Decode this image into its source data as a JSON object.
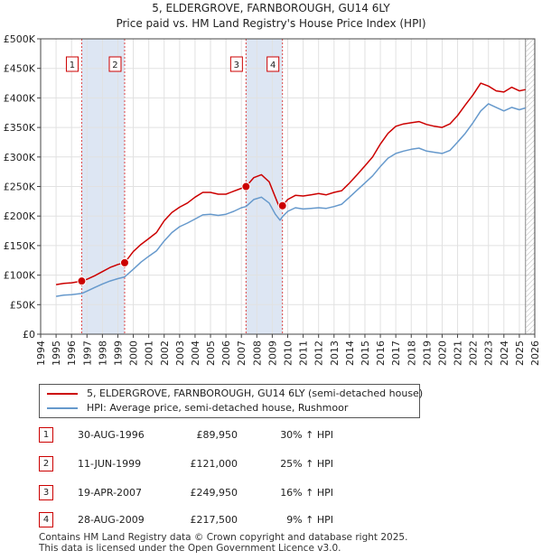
{
  "chart_data": {
    "type": "line",
    "title": "5, ELDERGROVE, FARNBOROUGH, GU14 6LY",
    "subtitle": "Price paid vs. HM Land Registry's House Price Index (HPI)",
    "xlim": [
      1994,
      2026
    ],
    "ylim": [
      0,
      500000
    ],
    "x_ticks": [
      1994,
      1995,
      1996,
      1997,
      1998,
      1999,
      2000,
      2001,
      2002,
      2003,
      2004,
      2005,
      2006,
      2007,
      2008,
      2009,
      2010,
      2011,
      2012,
      2013,
      2014,
      2015,
      2016,
      2017,
      2018,
      2019,
      2020,
      2021,
      2022,
      2023,
      2024,
      2025,
      2026
    ],
    "y_ticks": [
      0,
      50000,
      100000,
      150000,
      200000,
      250000,
      300000,
      350000,
      400000,
      450000,
      500000
    ],
    "y_tick_labels": [
      "£0",
      "£50K",
      "£100K",
      "£150K",
      "£200K",
      "£250K",
      "£300K",
      "£350K",
      "£400K",
      "£450K",
      "£500K"
    ],
    "grid": true,
    "data_end_year": 2025.4,
    "shaded_periods": [
      [
        1996.66,
        1999.44
      ],
      [
        2007.3,
        2009.66
      ]
    ],
    "series": [
      {
        "name": "5, ELDERGROVE, FARNBOROUGH, GU14 6LY (semi-detached house)",
        "color": "#cc0000",
        "points": [
          [
            1995.0,
            84000
          ],
          [
            1995.5,
            86000
          ],
          [
            1996.0,
            87000
          ],
          [
            1996.66,
            89950
          ],
          [
            1997.0,
            93000
          ],
          [
            1997.5,
            99000
          ],
          [
            1998.0,
            106000
          ],
          [
            1998.5,
            113000
          ],
          [
            1999.0,
            118000
          ],
          [
            1999.44,
            121000
          ],
          [
            2000.0,
            140000
          ],
          [
            2000.5,
            152000
          ],
          [
            2001.0,
            162000
          ],
          [
            2001.5,
            172000
          ],
          [
            2002.0,
            192000
          ],
          [
            2002.5,
            206000
          ],
          [
            2003.0,
            215000
          ],
          [
            2003.5,
            222000
          ],
          [
            2004.0,
            232000
          ],
          [
            2004.5,
            240000
          ],
          [
            2005.0,
            240000
          ],
          [
            2005.5,
            237000
          ],
          [
            2006.0,
            237000
          ],
          [
            2006.5,
            242000
          ],
          [
            2007.0,
            247000
          ],
          [
            2007.3,
            249950
          ],
          [
            2007.8,
            265000
          ],
          [
            2008.3,
            270000
          ],
          [
            2008.8,
            258000
          ],
          [
            2009.2,
            232000
          ],
          [
            2009.5,
            212000
          ],
          [
            2009.66,
            217500
          ],
          [
            2010.0,
            228000
          ],
          [
            2010.5,
            235000
          ],
          [
            2011.0,
            234000
          ],
          [
            2011.5,
            236000
          ],
          [
            2012.0,
            238000
          ],
          [
            2012.5,
            236000
          ],
          [
            2013.0,
            240000
          ],
          [
            2013.5,
            243000
          ],
          [
            2014.0,
            256000
          ],
          [
            2014.5,
            270000
          ],
          [
            2015.0,
            285000
          ],
          [
            2015.5,
            300000
          ],
          [
            2016.0,
            322000
          ],
          [
            2016.5,
            340000
          ],
          [
            2017.0,
            352000
          ],
          [
            2017.5,
            356000
          ],
          [
            2018.0,
            358000
          ],
          [
            2018.5,
            360000
          ],
          [
            2019.0,
            355000
          ],
          [
            2019.5,
            352000
          ],
          [
            2020.0,
            350000
          ],
          [
            2020.5,
            356000
          ],
          [
            2021.0,
            370000
          ],
          [
            2021.5,
            388000
          ],
          [
            2022.0,
            405000
          ],
          [
            2022.5,
            425000
          ],
          [
            2023.0,
            420000
          ],
          [
            2023.5,
            412000
          ],
          [
            2024.0,
            410000
          ],
          [
            2024.5,
            418000
          ],
          [
            2025.0,
            412000
          ],
          [
            2025.4,
            414000
          ]
        ]
      },
      {
        "name": "HPI: Average price, semi-detached house, Rushmoor",
        "color": "#6699cc",
        "points": [
          [
            1995.0,
            64000
          ],
          [
            1995.5,
            66000
          ],
          [
            1996.0,
            67000
          ],
          [
            1996.66,
            69000
          ],
          [
            1997.0,
            73000
          ],
          [
            1997.5,
            79000
          ],
          [
            1998.0,
            85000
          ],
          [
            1998.5,
            90000
          ],
          [
            1999.0,
            94000
          ],
          [
            1999.44,
            97000
          ],
          [
            2000.0,
            110000
          ],
          [
            2000.5,
            122000
          ],
          [
            2001.0,
            132000
          ],
          [
            2001.5,
            141000
          ],
          [
            2002.0,
            158000
          ],
          [
            2002.5,
            172000
          ],
          [
            2003.0,
            182000
          ],
          [
            2003.5,
            188000
          ],
          [
            2004.0,
            195000
          ],
          [
            2004.5,
            202000
          ],
          [
            2005.0,
            203000
          ],
          [
            2005.5,
            201000
          ],
          [
            2006.0,
            203000
          ],
          [
            2006.5,
            208000
          ],
          [
            2007.0,
            214000
          ],
          [
            2007.3,
            216000
          ],
          [
            2007.8,
            228000
          ],
          [
            2008.3,
            232000
          ],
          [
            2008.8,
            222000
          ],
          [
            2009.2,
            203000
          ],
          [
            2009.5,
            193000
          ],
          [
            2009.66,
            199000
          ],
          [
            2010.0,
            208000
          ],
          [
            2010.5,
            214000
          ],
          [
            2011.0,
            212000
          ],
          [
            2011.5,
            213000
          ],
          [
            2012.0,
            214000
          ],
          [
            2012.5,
            213000
          ],
          [
            2013.0,
            216000
          ],
          [
            2013.5,
            220000
          ],
          [
            2014.0,
            232000
          ],
          [
            2014.5,
            244000
          ],
          [
            2015.0,
            256000
          ],
          [
            2015.5,
            268000
          ],
          [
            2016.0,
            284000
          ],
          [
            2016.5,
            298000
          ],
          [
            2017.0,
            306000
          ],
          [
            2017.5,
            310000
          ],
          [
            2018.0,
            313000
          ],
          [
            2018.5,
            315000
          ],
          [
            2019.0,
            310000
          ],
          [
            2019.5,
            308000
          ],
          [
            2020.0,
            306000
          ],
          [
            2020.5,
            311000
          ],
          [
            2021.0,
            325000
          ],
          [
            2021.5,
            340000
          ],
          [
            2022.0,
            358000
          ],
          [
            2022.5,
            378000
          ],
          [
            2023.0,
            390000
          ],
          [
            2023.5,
            384000
          ],
          [
            2024.0,
            378000
          ],
          [
            2024.5,
            384000
          ],
          [
            2025.0,
            380000
          ],
          [
            2025.4,
            383000
          ]
        ]
      }
    ],
    "sales": [
      {
        "num": "1",
        "x": 1996.66,
        "price": 89950
      },
      {
        "num": "2",
        "x": 1999.44,
        "price": 121000
      },
      {
        "num": "3",
        "x": 2007.3,
        "price": 249950
      },
      {
        "num": "4",
        "x": 2009.66,
        "price": 217500
      }
    ]
  },
  "legend": {
    "property_label": "5, ELDERGROVE, FARNBOROUGH, GU14 6LY (semi-detached house)",
    "hpi_label": "HPI: Average price, semi-detached house, Rushmoor",
    "property_color": "#cc0000",
    "hpi_color": "#6699cc"
  },
  "sales_table": [
    {
      "num": "1",
      "date": "30-AUG-1996",
      "price": "£89,950",
      "hpi_change": "30% ↑ HPI"
    },
    {
      "num": "2",
      "date": "11-JUN-1999",
      "price": "£121,000",
      "hpi_change": "25% ↑ HPI"
    },
    {
      "num": "3",
      "date": "19-APR-2007",
      "price": "£249,950",
      "hpi_change": "16% ↑ HPI"
    },
    {
      "num": "4",
      "date": "28-AUG-2009",
      "price": "£217,500",
      "hpi_change": "9% ↑ HPI"
    }
  ],
  "footer": {
    "line1": "Contains HM Land Registry data © Crown copyright and database right 2025.",
    "line2": "This data is licensed under the Open Government Licence v3.0."
  }
}
